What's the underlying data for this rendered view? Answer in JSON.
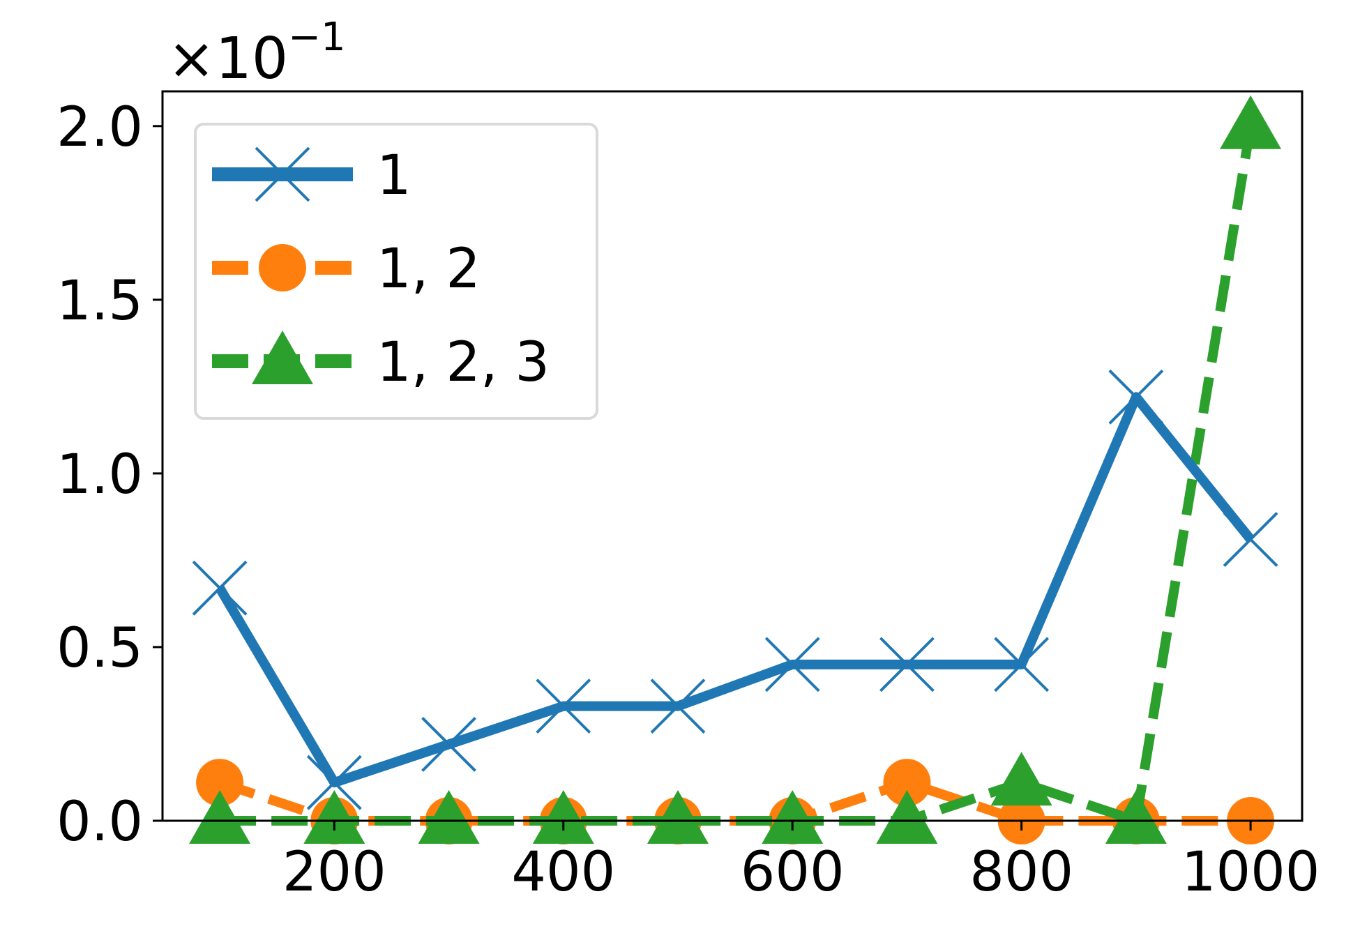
{
  "chart_data": {
    "type": "line",
    "title": "",
    "xlabel": "",
    "ylabel": "",
    "y_offset_label": {
      "base": "×10",
      "exponent": "−1"
    },
    "x": [
      100,
      200,
      300,
      400,
      500,
      600,
      700,
      800,
      900,
      1000
    ],
    "xlim": [
      50,
      1045
    ],
    "ylim": [
      0,
      2.1
    ],
    "x_ticks": [
      200,
      400,
      600,
      800,
      1000
    ],
    "y_ticks": [
      0.0,
      0.5,
      1.0,
      1.5,
      2.0
    ],
    "x_tick_labels": [
      "200",
      "400",
      "600",
      "800",
      "1000"
    ],
    "y_tick_labels": [
      "0.0",
      "0.5",
      "1.0",
      "1.5",
      "2.0"
    ],
    "grid": false,
    "legend_position": "top-left",
    "series": [
      {
        "name": "1",
        "color": "#1f77b4",
        "marker": "x",
        "linestyle": "solid",
        "values": [
          0.67,
          0.11,
          0.22,
          0.33,
          0.33,
          0.45,
          0.45,
          0.45,
          1.22,
          0.81
        ]
      },
      {
        "name": "1, 2",
        "color": "#ff7f0e",
        "marker": "circle",
        "linestyle": "dashed",
        "values": [
          0.11,
          0.0,
          0.0,
          0.0,
          0.0,
          0.0,
          0.11,
          0.0,
          0.0,
          0.0
        ]
      },
      {
        "name": "1, 2, 3",
        "color": "#2ca02c",
        "marker": "triangle",
        "linestyle": "dashed",
        "values": [
          0.0,
          0.0,
          0.0,
          0.0,
          0.0,
          0.0,
          0.0,
          0.11,
          0.0,
          2.0
        ]
      }
    ]
  }
}
